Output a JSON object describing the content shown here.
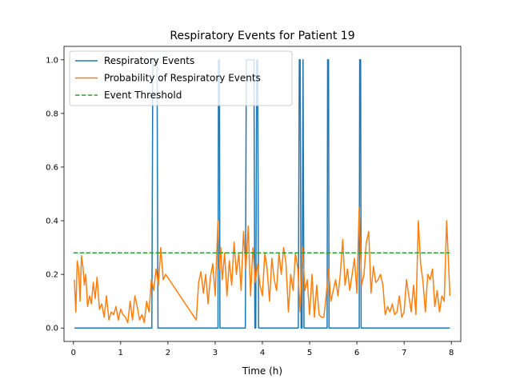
{
  "chart_data": {
    "type": "line",
    "title": "Respiratory Events for Patient 19",
    "xlabel": "Time (h)",
    "ylabel": "",
    "xlim": [
      -0.2,
      8.2
    ],
    "ylim": [
      -0.05,
      1.05
    ],
    "xticks": [
      "0",
      "1",
      "2",
      "3",
      "4",
      "5",
      "6",
      "7",
      "8"
    ],
    "yticks": [
      "0.0",
      "0.2",
      "0.4",
      "0.6",
      "0.8",
      "1.0"
    ],
    "grid": false,
    "legend_position": "top-left",
    "series": [
      {
        "name": "Respiratory Events",
        "color": "#1f77b4",
        "style": "solid",
        "x": [
          0.02,
          1.66,
          1.68,
          1.77,
          1.79,
          3.06,
          3.07,
          3.09,
          3.1,
          3.64,
          3.66,
          3.82,
          3.84,
          3.86,
          3.88,
          3.9,
          3.92,
          3.94,
          4.76,
          4.78,
          4.8,
          4.82,
          4.84,
          4.86,
          4.88,
          5.37,
          5.38,
          5.4,
          5.41,
          6.05,
          6.06,
          6.08,
          6.09,
          7.97
        ],
        "y": [
          0,
          0,
          1,
          1,
          0,
          0,
          1,
          1,
          0,
          0,
          1,
          1,
          0,
          0,
          1,
          1,
          0,
          0,
          0,
          1,
          1,
          0,
          0,
          1,
          0,
          0,
          1,
          1,
          0,
          0,
          1,
          1,
          0,
          0
        ]
      },
      {
        "name": "Probability of Respiratory Events",
        "color": "#ff7f0e",
        "style": "solid",
        "x": [
          0.02,
          0.05,
          0.08,
          0.11,
          0.14,
          0.17,
          0.2,
          0.23,
          0.26,
          0.3,
          0.34,
          0.38,
          0.42,
          0.46,
          0.5,
          0.55,
          0.6,
          0.65,
          0.7,
          0.75,
          0.8,
          0.85,
          0.9,
          0.95,
          1.0,
          1.05,
          1.1,
          1.15,
          1.2,
          1.25,
          1.3,
          1.35,
          1.4,
          1.45,
          1.5,
          1.55,
          1.6,
          1.65,
          1.7,
          1.75,
          1.8,
          1.85,
          1.9,
          1.95,
          2.6,
          2.65,
          2.7,
          2.75,
          2.8,
          2.85,
          2.9,
          2.95,
          3.0,
          3.03,
          3.06,
          3.09,
          3.12,
          3.15,
          3.2,
          3.25,
          3.3,
          3.35,
          3.4,
          3.45,
          3.5,
          3.55,
          3.6,
          3.65,
          3.7,
          3.75,
          3.8,
          3.85,
          3.9,
          3.95,
          4.0,
          4.05,
          4.1,
          4.15,
          4.2,
          4.25,
          4.3,
          4.35,
          4.4,
          4.45,
          4.5,
          4.55,
          4.6,
          4.65,
          4.7,
          4.75,
          4.8,
          4.85,
          4.9,
          4.95,
          5.0,
          5.05,
          5.1,
          5.15,
          5.2,
          5.25,
          5.3,
          5.35,
          5.4,
          5.45,
          5.5,
          5.55,
          5.6,
          5.65,
          5.7,
          5.75,
          5.8,
          5.85,
          5.9,
          5.95,
          6.0,
          6.05,
          6.1,
          6.15,
          6.2,
          6.25,
          6.3,
          6.35,
          6.4,
          6.45,
          6.5,
          6.55,
          6.6,
          6.65,
          6.7,
          6.75,
          6.8,
          6.85,
          6.9,
          6.95,
          7.0,
          7.05,
          7.1,
          7.15,
          7.2,
          7.25,
          7.3,
          7.35,
          7.4,
          7.45,
          7.5,
          7.55,
          7.6,
          7.65,
          7.7,
          7.75,
          7.8,
          7.85,
          7.9,
          7.93,
          7.97
        ],
        "y": [
          0.18,
          0.06,
          0.25,
          0.22,
          0.1,
          0.27,
          0.23,
          0.16,
          0.2,
          0.08,
          0.12,
          0.09,
          0.17,
          0.11,
          0.19,
          0.07,
          0.09,
          0.04,
          0.12,
          0.03,
          0.06,
          0.05,
          0.08,
          0.03,
          0.07,
          0.05,
          0.04,
          0.02,
          0.1,
          0.03,
          0.12,
          0.08,
          0.03,
          0.05,
          0.02,
          0.1,
          0.06,
          0.18,
          0.14,
          0.22,
          0.16,
          0.3,
          0.18,
          0.2,
          0.03,
          0.17,
          0.21,
          0.13,
          0.2,
          0.09,
          0.19,
          0.24,
          0.12,
          0.26,
          0.4,
          0.22,
          0.3,
          0.18,
          0.28,
          0.12,
          0.25,
          0.16,
          0.32,
          0.2,
          0.28,
          0.14,
          0.36,
          0.22,
          0.38,
          0.12,
          0.3,
          0.17,
          0.24,
          0.16,
          0.12,
          0.28,
          0.22,
          0.1,
          0.26,
          0.18,
          0.14,
          0.28,
          0.2,
          0.3,
          0.24,
          0.06,
          0.2,
          0.14,
          0.28,
          0.22,
          0.06,
          0.3,
          0.14,
          0.18,
          0.05,
          0.2,
          0.04,
          0.16,
          0.05,
          0.04,
          0.04,
          0.12,
          0.22,
          0.1,
          0.14,
          0.18,
          0.12,
          0.2,
          0.33,
          0.16,
          0.22,
          0.14,
          0.2,
          0.26,
          0.13,
          0.45,
          0.16,
          0.2,
          0.32,
          0.36,
          0.13,
          0.23,
          0.17,
          0.18,
          0.2,
          0.16,
          0.05,
          0.08,
          0.06,
          0.09,
          0.05,
          0.06,
          0.12,
          0.04,
          0.06,
          0.18,
          0.12,
          0.06,
          0.16,
          0.05,
          0.4,
          0.24,
          0.17,
          0.06,
          0.2,
          0.18,
          0.22,
          0.08,
          0.14,
          0.06,
          0.12,
          0.1,
          0.4,
          0.28,
          0.12
        ]
      },
      {
        "name": "Event Threshold",
        "color": "#2ca02c",
        "style": "dashed",
        "x": [
          0.0,
          7.97
        ],
        "y": [
          0.28,
          0.28
        ]
      }
    ]
  }
}
